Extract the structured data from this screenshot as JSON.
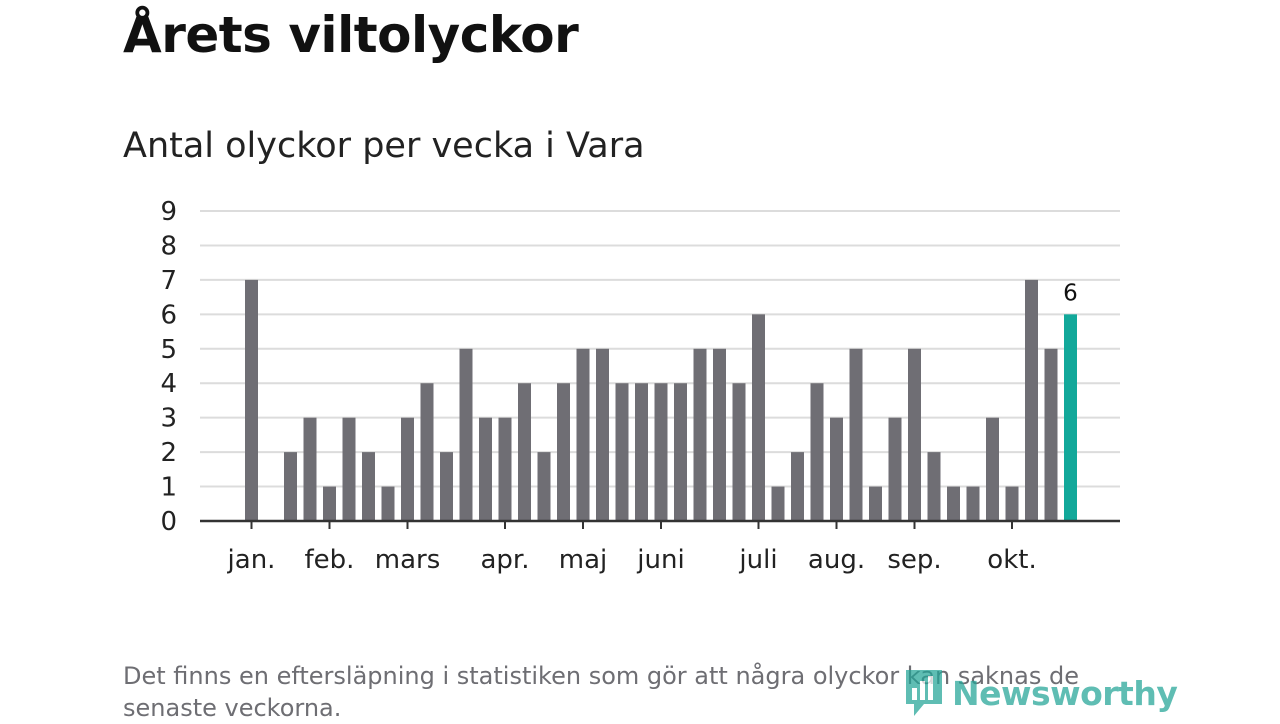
{
  "title": "Årets viltolyckor",
  "subtitle": "Antal olyckor per vecka i Vara",
  "footnote": "Det finns en eftersläpning i statistiken som gör att några olyckor kan saknas de senaste veckorna.",
  "logo": {
    "text": "Newsworthy",
    "icon": "newsworthy-logo-icon"
  },
  "colors": {
    "bar": "#6f6e74",
    "highlight": "#12a89a",
    "grid": "#dcdcdc",
    "axis": "#333333",
    "text": "#222222"
  },
  "chart_data": {
    "type": "bar",
    "y_ticks": [
      "0",
      "1",
      "2",
      "3",
      "4",
      "5",
      "6",
      "7",
      "8",
      "9"
    ],
    "ylim": [
      0,
      9
    ],
    "grid": true,
    "values": [
      7,
      0,
      2,
      3,
      1,
      3,
      2,
      1,
      3,
      4,
      2,
      5,
      3,
      3,
      4,
      2,
      4,
      5,
      5,
      4,
      4,
      4,
      4,
      5,
      5,
      4,
      6,
      1,
      2,
      4,
      3,
      5,
      1,
      3,
      5,
      2,
      1,
      1,
      3,
      1,
      7,
      5,
      6
    ],
    "highlight_index": 42,
    "highlight_label": "6",
    "month_labels": [
      {
        "label": "jan.",
        "week": 0
      },
      {
        "label": "feb.",
        "week": 4
      },
      {
        "label": "mars",
        "week": 8
      },
      {
        "label": "apr.",
        "week": 13
      },
      {
        "label": "maj",
        "week": 17
      },
      {
        "label": "juni",
        "week": 21
      },
      {
        "label": "juli",
        "week": 26
      },
      {
        "label": "aug.",
        "week": 30
      },
      {
        "label": "sep.",
        "week": 34
      },
      {
        "label": "okt.",
        "week": 39
      }
    ]
  }
}
